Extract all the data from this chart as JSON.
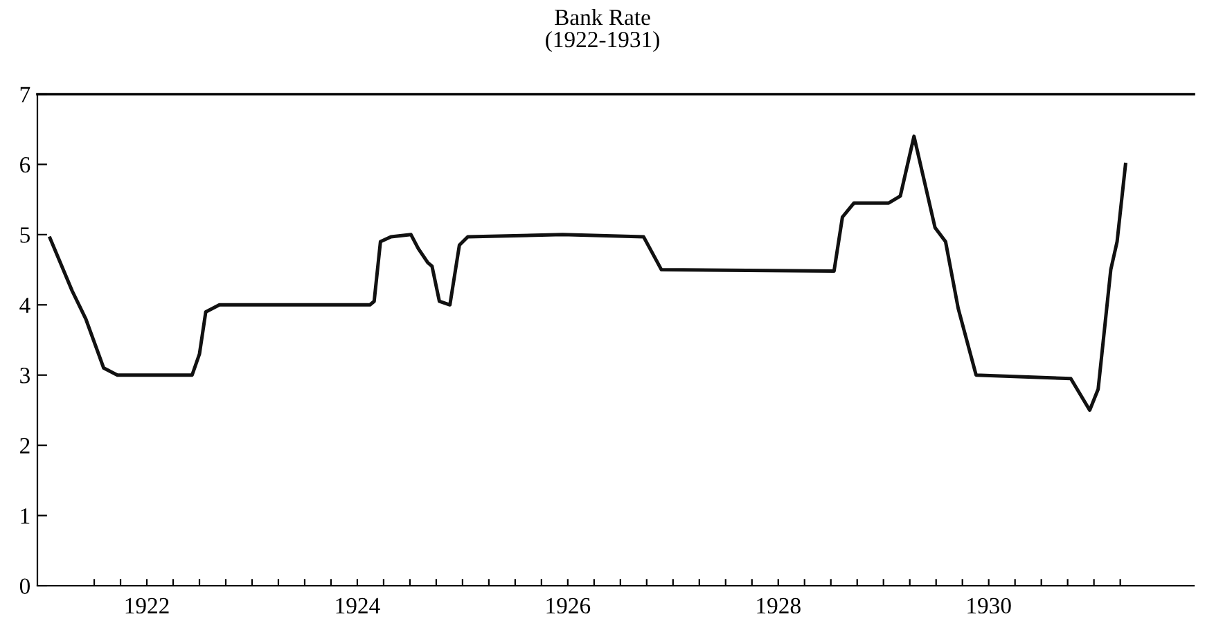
{
  "chart_data": {
    "type": "line",
    "title": "Bank Rate",
    "subtitle": "(1922-1931)",
    "x": [
      1921.58,
      1921.79,
      1921.92,
      1922.09,
      1922.22,
      1922.93,
      1923.0,
      1923.06,
      1923.19,
      1924.62,
      1924.66,
      1924.72,
      1924.82,
      1925.01,
      1925.08,
      1925.17,
      1925.21,
      1925.28,
      1925.38,
      1925.47,
      1925.55,
      1926.45,
      1927.22,
      1927.39,
      1929.03,
      1929.11,
      1929.22,
      1929.55,
      1929.66,
      1929.79,
      1929.99,
      1930.09,
      1930.21,
      1930.38,
      1931.28,
      1931.46,
      1931.54,
      1931.66,
      1931.72,
      1931.8
    ],
    "series": [
      {
        "color": "#111111",
        "values": [
          4.95,
          4.2,
          3.8,
          3.1,
          3.0,
          3.0,
          3.3,
          3.9,
          4.0,
          4.0,
          4.05,
          4.9,
          4.97,
          5.0,
          4.8,
          4.6,
          4.55,
          4.05,
          4.0,
          4.85,
          4.97,
          5.0,
          4.97,
          4.5,
          4.48,
          5.25,
          5.45,
          5.45,
          5.55,
          6.4,
          5.1,
          4.9,
          3.95,
          3.0,
          2.95,
          2.5,
          2.8,
          4.5,
          4.9,
          6.0
        ]
      }
    ],
    "xlim": [
      1921.46,
      1932.45
    ],
    "ylim": [
      0,
      7
    ],
    "yticks": [
      0,
      1,
      2,
      3,
      4,
      5,
      6,
      7
    ],
    "xticks": [
      {
        "value": 1922,
        "label": null
      },
      {
        "value": 1922.25,
        "label": null
      },
      {
        "value": 1922.5,
        "label": "1922"
      },
      {
        "value": 1922.75,
        "label": null
      },
      {
        "value": 1923,
        "label": null
      },
      {
        "value": 1923.25,
        "label": null
      },
      {
        "value": 1923.5,
        "label": null
      },
      {
        "value": 1923.75,
        "label": null
      },
      {
        "value": 1924,
        "label": null
      },
      {
        "value": 1924.25,
        "label": null
      },
      {
        "value": 1924.5,
        "label": "1924"
      },
      {
        "value": 1924.75,
        "label": null
      },
      {
        "value": 1925,
        "label": null
      },
      {
        "value": 1925.25,
        "label": null
      },
      {
        "value": 1925.5,
        "label": null
      },
      {
        "value": 1925.75,
        "label": null
      },
      {
        "value": 1926,
        "label": null
      },
      {
        "value": 1926.25,
        "label": null
      },
      {
        "value": 1926.5,
        "label": "1926"
      },
      {
        "value": 1926.75,
        "label": null
      },
      {
        "value": 1927,
        "label": null
      },
      {
        "value": 1927.25,
        "label": null
      },
      {
        "value": 1927.5,
        "label": null
      },
      {
        "value": 1927.75,
        "label": null
      },
      {
        "value": 1928,
        "label": null
      },
      {
        "value": 1928.25,
        "label": null
      },
      {
        "value": 1928.5,
        "label": "1928"
      },
      {
        "value": 1928.75,
        "label": null
      },
      {
        "value": 1929,
        "label": null
      },
      {
        "value": 1929.25,
        "label": null
      },
      {
        "value": 1929.5,
        "label": null
      },
      {
        "value": 1929.75,
        "label": null
      },
      {
        "value": 1930,
        "label": null
      },
      {
        "value": 1930.25,
        "label": null
      },
      {
        "value": 1930.5,
        "label": "1930"
      },
      {
        "value": 1930.75,
        "label": null
      },
      {
        "value": 1931,
        "label": null
      },
      {
        "value": 1931.25,
        "label": null
      },
      {
        "value": 1931.5,
        "label": null
      },
      {
        "value": 1931.75,
        "label": null
      }
    ],
    "grid": false,
    "marker": "none",
    "line_style": "solid"
  }
}
